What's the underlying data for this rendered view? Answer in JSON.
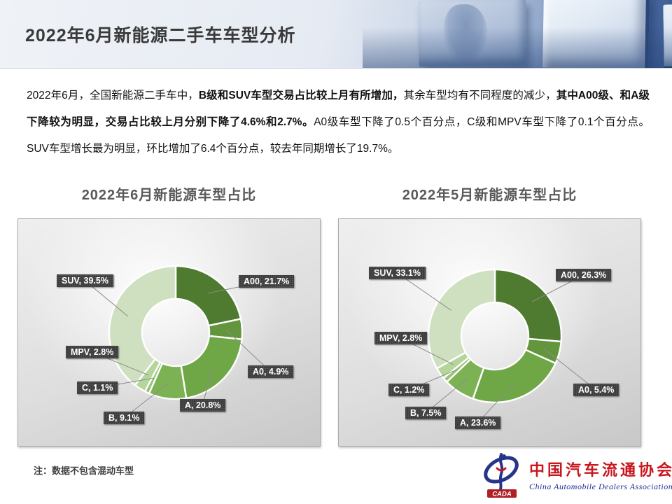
{
  "header": {
    "title": "2022年6月新能源二手车车型分析"
  },
  "paragraph": {
    "segments": [
      {
        "text": "2022年6月，全国新能源二手车中，",
        "bold": false
      },
      {
        "text": "B级和SUV车型交易占比较上月有所增加，",
        "bold": true
      },
      {
        "text": "其余车型均有不同程度的减少，",
        "bold": false
      },
      {
        "text": "其中A00级、和A级下降较为明显，交易占比较上月分别下降了4.6%和2.7%。",
        "bold": true
      },
      {
        "text": "A0级车型下降了0.5个百分点，C级和MPV车型下降了0.1个百分点。SUV车型增长最为明显，环比增加了6.4个百分点，较去年同期增长了19.7%。",
        "bold": false
      }
    ]
  },
  "chart_data": [
    {
      "type": "pie",
      "subtype": "donut",
      "title": "2022年6月新能源车型占比",
      "categories": [
        "A00",
        "A0",
        "A",
        "B",
        "C",
        "MPV",
        "SUV"
      ],
      "values": [
        21.7,
        4.9,
        20.8,
        9.1,
        1.1,
        2.8,
        39.5
      ],
      "unit": "%",
      "legend_position": "none",
      "data_labels": "outside-callout",
      "start_angle": "top-clockwise",
      "colors": [
        "#4e7b2f",
        "#63963c",
        "#6fa747",
        "#7cb254",
        "#98c277",
        "#b5d69b",
        "#cfe0c0"
      ]
    },
    {
      "type": "pie",
      "subtype": "donut",
      "title": "2022年5月新能源车型占比",
      "categories": [
        "A00",
        "A0",
        "A",
        "B",
        "C",
        "MPV",
        "SUV"
      ],
      "values": [
        26.3,
        5.4,
        23.6,
        7.5,
        1.2,
        2.8,
        33.1
      ],
      "unit": "%",
      "legend_position": "none",
      "data_labels": "outside-callout",
      "start_angle": "top-clockwise",
      "colors": [
        "#4e7b2f",
        "#63963c",
        "#6fa747",
        "#7cb254",
        "#98c277",
        "#b5d69b",
        "#cfe0c0"
      ]
    }
  ],
  "note": "注：数据不包含混动车型",
  "logo": {
    "badge": "CADA",
    "cn": "中国汽车流通协会",
    "en": "China Automobile Dealers Association"
  }
}
